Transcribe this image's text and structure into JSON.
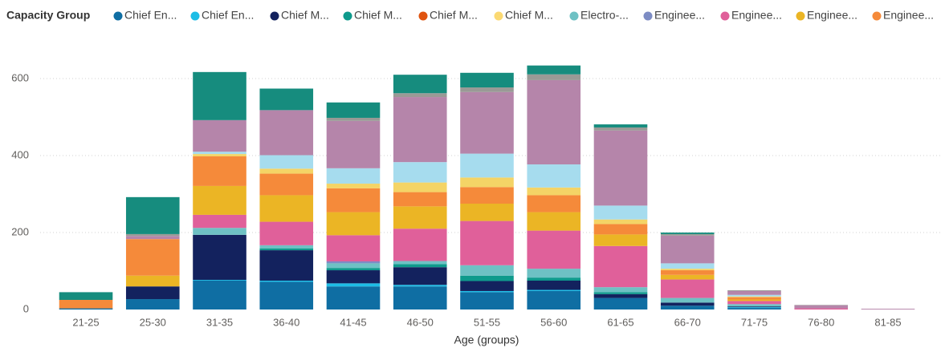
{
  "chart_data": {
    "type": "stacked_bar",
    "legend_title": "Capacity Group",
    "x_label": "Age (groups)",
    "categories": [
      "21-25",
      "25-30",
      "31-35",
      "36-40",
      "41-45",
      "46-50",
      "51-55",
      "56-60",
      "61-65",
      "66-70",
      "71-75",
      "76-80",
      "81-85"
    ],
    "series": [
      {
        "name": "Chief En...",
        "color": "#0f6ea3",
        "values": [
          3,
          27,
          75,
          72,
          60,
          60,
          45,
          48,
          30,
          10,
          4,
          0,
          0
        ]
      },
      {
        "name": "Chief En...",
        "color": "#1dbde6",
        "values": [
          0,
          0,
          2,
          3,
          8,
          4,
          3,
          3,
          0,
          0,
          2,
          0,
          0
        ]
      },
      {
        "name": "Chief M...",
        "color": "#13225e",
        "values": [
          0,
          33,
          117,
          79,
          34,
          46,
          26,
          24,
          10,
          8,
          2,
          0,
          0
        ]
      },
      {
        "name": "Chief M...",
        "color": "#0e9a8c",
        "values": [
          0,
          0,
          0,
          5,
          6,
          8,
          14,
          8,
          5,
          0,
          0,
          0,
          0
        ]
      },
      {
        "name": "Chief M...",
        "color": "#e0540f",
        "values": [
          0,
          0,
          0,
          0,
          0,
          0,
          0,
          0,
          0,
          0,
          0,
          0,
          0
        ]
      },
      {
        "name": "Chief M...",
        "color": "#fbd972",
        "values": [
          0,
          0,
          0,
          0,
          0,
          0,
          0,
          0,
          0,
          0,
          0,
          0,
          0
        ]
      },
      {
        "name": "Electro-...",
        "color": "#6ec1c4",
        "values": [
          0,
          0,
          18,
          8,
          12,
          8,
          27,
          23,
          13,
          12,
          6,
          0,
          0
        ]
      },
      {
        "name": "Enginee...",
        "color": "#7d8cc4",
        "values": [
          0,
          0,
          0,
          0,
          5,
          0,
          0,
          0,
          0,
          0,
          0,
          0,
          0
        ]
      },
      {
        "name": "Enginee...",
        "color": "#e0609a",
        "values": [
          0,
          0,
          34,
          61,
          68,
          84,
          115,
          99,
          107,
          48,
          8,
          3,
          0
        ]
      },
      {
        "name": "Enginee...",
        "color": "#ebb525",
        "values": [
          0,
          28,
          75,
          69,
          60,
          58,
          45,
          48,
          30,
          12,
          4,
          0,
          0
        ]
      },
      {
        "name": "Enginee...",
        "color": "#f58a3a",
        "values": [
          22,
          95,
          77,
          56,
          62,
          37,
          43,
          44,
          27,
          12,
          6,
          0,
          0
        ]
      },
      {
        "name": null,
        "color": "#f4d466",
        "values": [
          0,
          0,
          6,
          13,
          12,
          25,
          25,
          20,
          12,
          4,
          2,
          0,
          0
        ]
      },
      {
        "name": null,
        "color": "#a6dcee",
        "values": [
          0,
          0,
          6,
          35,
          40,
          53,
          62,
          60,
          36,
          14,
          4,
          0,
          0
        ]
      },
      {
        "name": null,
        "color": "#b585aa",
        "values": [
          0,
          8,
          82,
          117,
          123,
          169,
          160,
          219,
          195,
          72,
          10,
          8,
          2
        ]
      },
      {
        "name": null,
        "color": "#9a9a96",
        "values": [
          0,
          5,
          0,
          0,
          8,
          10,
          12,
          15,
          8,
          4,
          2,
          1,
          0
        ]
      },
      {
        "name": null,
        "color": "#168c7e",
        "values": [
          20,
          96,
          125,
          56,
          40,
          48,
          38,
          23,
          8,
          4,
          0,
          0,
          0
        ]
      }
    ],
    "ylim": [
      0,
      650
    ],
    "yticks": [
      0,
      200,
      400,
      600
    ],
    "grid": true
  }
}
